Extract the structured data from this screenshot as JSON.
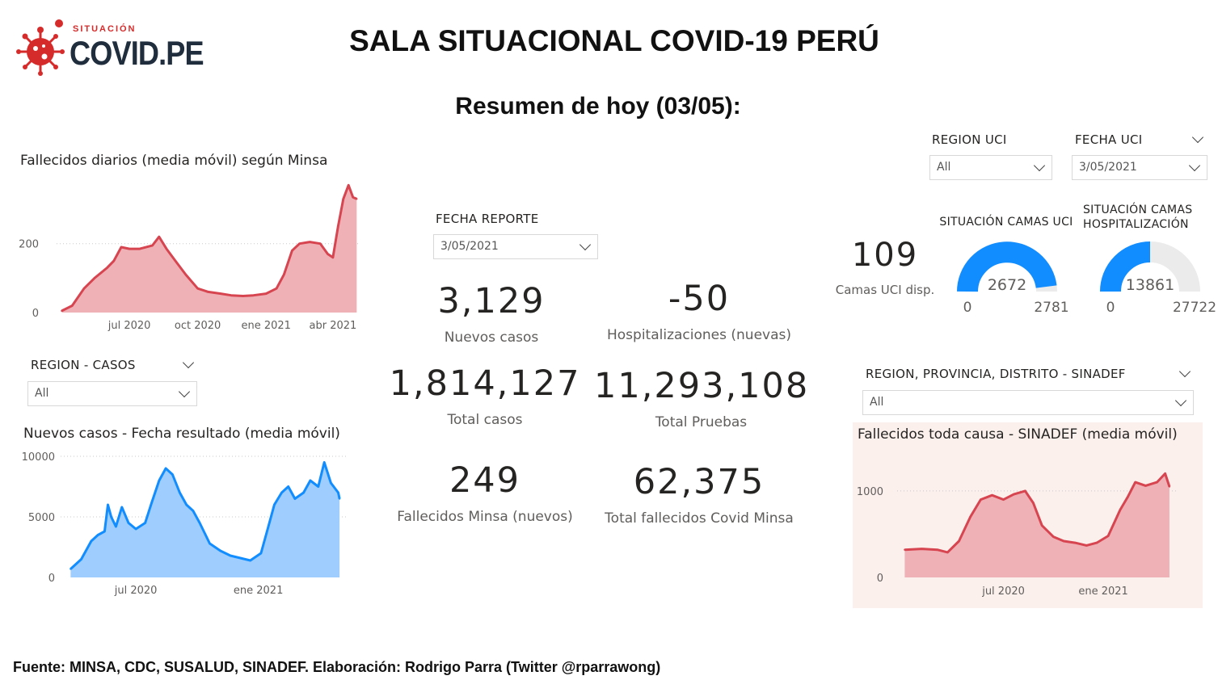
{
  "header": {
    "logo_small": "SITUACIÓN",
    "logo_big": "COVID.PE",
    "title": "SALA SITUACIONAL COVID-19 PERÚ",
    "subtitle": "Resumen de hoy (03/05):"
  },
  "slicers": {
    "region_casos": {
      "label": "REGION - CASOS",
      "value": "All"
    },
    "fecha_reporte": {
      "label": "FECHA REPORTE",
      "value": "3/05/2021"
    },
    "region_uci": {
      "label": "REGION UCI",
      "value": "All"
    },
    "fecha_uci": {
      "label": "FECHA UCI",
      "value": "3/05/2021"
    },
    "region_sinadef": {
      "label": "REGION, PROVINCIA, DISTRITO - SINADEF",
      "value": "All"
    }
  },
  "kpis": {
    "nuevos_casos": {
      "value": "3,129",
      "label": "Nuevos casos"
    },
    "hospitalizaciones": {
      "value": "-50",
      "label": "Hospitalizaciones (nuevas)"
    },
    "total_casos": {
      "value": "1,814,127",
      "label": "Total casos"
    },
    "total_pruebas": {
      "value": "11,293,108",
      "label": "Total Pruebas"
    },
    "fallecidos_minsa": {
      "value": "249",
      "label": "Fallecidos Minsa (nuevos)"
    },
    "total_fallecidos": {
      "value": "62,375",
      "label": "Total fallecidos Covid Minsa"
    },
    "camas_uci": {
      "value": "109",
      "label": "Camas UCI disp."
    }
  },
  "gauges": [
    {
      "title": "SITUACIÓN CAMAS UCI",
      "value": 2672,
      "min": 0,
      "max": 2781,
      "value_label": "2672",
      "min_label": "0",
      "max_label": "2781",
      "color": "#118dff"
    },
    {
      "title": "SITUACIÓN CAMAS HOSPITALIZACIÓN",
      "value": 13861,
      "min": 0,
      "max": 27722,
      "value_label": "13861",
      "min_label": "0",
      "max_label": "27722",
      "color": "#118dff"
    }
  ],
  "footer": "Fuente: MINSA, CDC, SUSALUD, SINADEF. Elaboración: Rodrigo Parra (Twitter @rparrawong)",
  "chart_data": [
    {
      "id": "fallecidos",
      "type": "area",
      "title": "Fallecidos diarios (media móvil) según Minsa",
      "color": "#d64550",
      "fill": "#f0b1b6",
      "x": [
        "2020-04-01",
        "2020-04-15",
        "2020-05-01",
        "2020-05-15",
        "2020-06-01",
        "2020-06-10",
        "2020-06-20",
        "2020-07-01",
        "2020-07-15",
        "2020-08-01",
        "2020-08-10",
        "2020-08-20",
        "2020-09-01",
        "2020-09-15",
        "2020-10-01",
        "2020-10-15",
        "2020-11-01",
        "2020-11-15",
        "2020-12-01",
        "2020-12-15",
        "2021-01-01",
        "2021-01-15",
        "2021-01-25",
        "2021-02-05",
        "2021-02-15",
        "2021-03-01",
        "2021-03-15",
        "2021-03-25",
        "2021-04-01",
        "2021-04-08",
        "2021-04-15",
        "2021-04-22",
        "2021-04-28",
        "2021-05-03"
      ],
      "y": [
        5,
        20,
        70,
        100,
        130,
        150,
        190,
        185,
        185,
        195,
        220,
        185,
        150,
        110,
        70,
        60,
        55,
        50,
        48,
        50,
        55,
        70,
        110,
        180,
        200,
        205,
        200,
        170,
        160,
        250,
        330,
        370,
        335,
        330
      ],
      "xticks": [
        {
          "x": "2020-07-01",
          "label": "jul 2020"
        },
        {
          "x": "2020-10-01",
          "label": "oct 2020"
        },
        {
          "x": "2021-01-01",
          "label": "ene 2021"
        },
        {
          "x": "2021-04-01",
          "label": "abr 2021"
        }
      ],
      "yticks": [
        0,
        200
      ],
      "xlim": [
        "2020-03-25",
        "2021-05-07"
      ],
      "ylim": [
        0,
        380
      ],
      "grid": true
    },
    {
      "id": "casos",
      "type": "area",
      "title": "Nuevos casos - Fecha resultado (media móvil)",
      "color": "#118dff",
      "fill": "#9fcdfd",
      "x": [
        "2020-03-25",
        "2020-04-10",
        "2020-04-25",
        "2020-05-05",
        "2020-05-15",
        "2020-05-20",
        "2020-05-25",
        "2020-06-01",
        "2020-06-10",
        "2020-06-20",
        "2020-07-01",
        "2020-07-15",
        "2020-07-25",
        "2020-08-05",
        "2020-08-15",
        "2020-08-25",
        "2020-09-05",
        "2020-09-15",
        "2020-09-25",
        "2020-10-05",
        "2020-10-20",
        "2020-11-05",
        "2020-11-20",
        "2020-12-05",
        "2020-12-20",
        "2021-01-05",
        "2021-01-15",
        "2021-01-25",
        "2021-02-05",
        "2021-02-15",
        "2021-02-25",
        "2021-03-10",
        "2021-03-20",
        "2021-04-01",
        "2021-04-10",
        "2021-04-20",
        "2021-05-01",
        "2021-05-03"
      ],
      "y": [
        700,
        1500,
        3000,
        3500,
        3800,
        6000,
        5000,
        4200,
        5800,
        4500,
        4000,
        4500,
        6200,
        8000,
        9000,
        8500,
        7000,
        6000,
        5500,
        4500,
        2800,
        2200,
        1800,
        1600,
        1400,
        2000,
        4000,
        6000,
        7000,
        7500,
        6500,
        7000,
        8000,
        7500,
        9500,
        7800,
        7000,
        6500
      ],
      "xticks": [
        {
          "x": "2020-07-01",
          "label": "jul 2020"
        },
        {
          "x": "2021-01-01",
          "label": "ene 2021"
        }
      ],
      "yticks": [
        0,
        5000,
        10000
      ],
      "xlim": [
        "2020-03-10",
        "2021-05-15"
      ],
      "ylim": [
        0,
        10000
      ],
      "grid": true
    },
    {
      "id": "sinadef",
      "type": "area",
      "title": "Fallecidos toda causa - SINADEF (media móvil)",
      "color": "#d64550",
      "fill": "#f0b1b6",
      "x": [
        "2020-01-01",
        "2020-02-01",
        "2020-03-01",
        "2020-03-20",
        "2020-04-10",
        "2020-05-01",
        "2020-05-20",
        "2020-06-10",
        "2020-07-01",
        "2020-07-20",
        "2020-08-10",
        "2020-08-25",
        "2020-09-10",
        "2020-10-01",
        "2020-10-20",
        "2020-11-10",
        "2020-12-01",
        "2020-12-20",
        "2021-01-10",
        "2021-02-01",
        "2021-02-15",
        "2021-03-01",
        "2021-03-20",
        "2021-04-10",
        "2021-04-25",
        "2021-05-03"
      ],
      "y": [
        320,
        330,
        320,
        290,
        420,
        700,
        900,
        950,
        900,
        960,
        1000,
        860,
        600,
        470,
        420,
        400,
        370,
        400,
        480,
        780,
        930,
        1100,
        1060,
        1100,
        1200,
        1050
      ],
      "xticks": [
        {
          "x": "2020-07-01",
          "label": "jul 2020"
        },
        {
          "x": "2021-01-01",
          "label": "ene 2021"
        }
      ],
      "yticks": [
        0,
        1000
      ],
      "xlim": [
        "2019-12-18",
        "2021-05-15"
      ],
      "ylim": [
        0,
        1400
      ],
      "grid": true
    }
  ]
}
